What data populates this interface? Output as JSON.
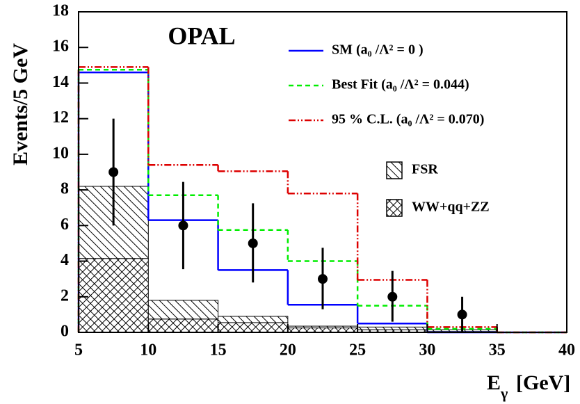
{
  "chart_data": {
    "type": "histogram",
    "annotation": "OPAL",
    "ylabel": "Events/5 GeV",
    "xlabel": [
      "E",
      "γ",
      "[GeV]"
    ],
    "bins": [
      5,
      10,
      15,
      20,
      25,
      30,
      35,
      40
    ],
    "xlim": [
      5,
      40
    ],
    "ylim": [
      0,
      18
    ],
    "xticks": [
      5,
      10,
      15,
      20,
      25,
      30,
      35,
      40
    ],
    "yticks": [
      0,
      2,
      4,
      6,
      8,
      10,
      12,
      14,
      16,
      18
    ],
    "stacked": [
      {
        "name": "WW+qq+ZZ",
        "hatch": "cross",
        "values": [
          4.15,
          0.75,
          0.55,
          0.25,
          0.15,
          0.05,
          0
        ]
      },
      {
        "name": "FSR",
        "hatch": "diagonal",
        "values": [
          4.05,
          1.05,
          0.35,
          0.1,
          0.15,
          0.1,
          0
        ]
      }
    ],
    "series": [
      {
        "name": "SM (a₀ /Λ² = 0 )",
        "color": "#0000ff",
        "dash": "none",
        "values": [
          14.6,
          6.3,
          3.5,
          1.55,
          0.5,
          0,
          0
        ]
      },
      {
        "name": "Best Fit (a₀ /Λ² = 0.044)",
        "color": "#00ee00",
        "dash": "7 5",
        "values": [
          14.75,
          7.7,
          5.75,
          4.0,
          1.5,
          0.2,
          0
        ]
      },
      {
        "name": "95 % C.L. (a₀ /Λ² = 0.070)",
        "color": "#dd0000",
        "dash": "10 3 2 3 2 3",
        "values": [
          14.9,
          9.4,
          9.05,
          7.8,
          2.95,
          0.3,
          0
        ]
      }
    ],
    "points": {
      "x": [
        7.5,
        12.5,
        17.5,
        22.5,
        27.5,
        32.5
      ],
      "values": [
        9,
        6,
        5,
        3,
        2,
        1
      ],
      "err_minus": [
        3.0,
        2.45,
        2.2,
        1.7,
        1.4,
        1.0
      ],
      "err_plus": [
        3.0,
        2.45,
        2.25,
        1.75,
        1.45,
        1.0
      ]
    }
  }
}
